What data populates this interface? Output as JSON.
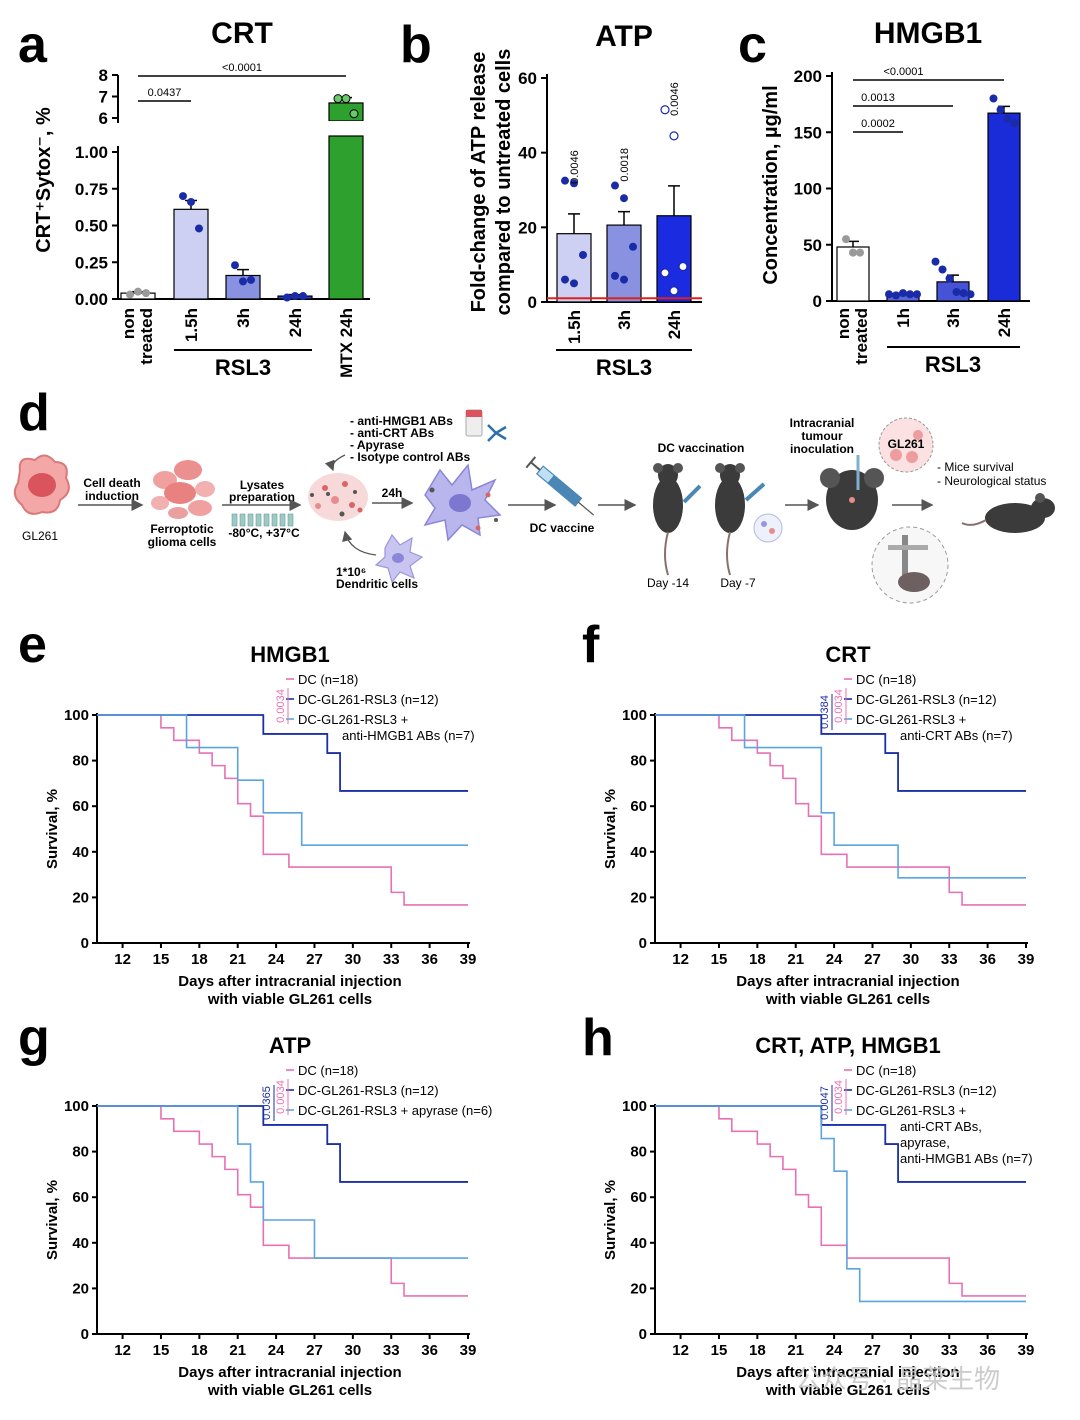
{
  "panels": {
    "a": "a",
    "b": "b",
    "c": "c",
    "d": "d",
    "e": "e",
    "f": "f",
    "g": "g",
    "h": "h"
  },
  "chart_data": [
    {
      "id": "a",
      "type": "bar",
      "title": "CRT",
      "ylabel": "CRT⁺Sytox⁻, %",
      "categories": [
        "non treated",
        "1.5h",
        "3h",
        "24h",
        "MTX 24h"
      ],
      "group_label": "RSL3",
      "values": [
        0.04,
        0.61,
        0.16,
        0.02,
        6.7
      ],
      "errors": [
        0.01,
        0.06,
        0.04,
        0.01,
        0.25
      ],
      "points": [
        [
          0.03,
          0.05,
          0.04
        ],
        [
          0.7,
          0.66,
          0.48
        ],
        [
          0.23,
          0.12,
          0.13
        ],
        [
          0.01,
          0.02,
          0.02
        ],
        [
          6.9,
          6.9,
          6.2
        ]
      ],
      "lower_ticks": [
        "0.00",
        "0.25",
        "0.50",
        "0.75",
        "1.00"
      ],
      "upper_ticks": [
        "6",
        "7",
        "8"
      ],
      "colors": [
        "#ffffff",
        "#cdd0f3",
        "#8892e0",
        "#2d3fd3",
        "#2ea02e"
      ],
      "pvalues": [
        {
          "text": "0.0437",
          "from": 0,
          "to": 1
        },
        {
          "text": "<0.0001",
          "from": 0,
          "to": 4
        }
      ]
    },
    {
      "id": "b",
      "type": "bar",
      "title": "ATP",
      "ylabel": "Fold-change of ATP release compared to untreated cells",
      "ylabel_lines": [
        "Fold-change of ATP release",
        "compared to untreated cells"
      ],
      "categories": [
        "1.5h",
        "3h",
        "24h"
      ],
      "group_label": "RSL3",
      "values": [
        18.3,
        20.6,
        23.1
      ],
      "errors": [
        5.3,
        3.6,
        8.0
      ],
      "points": [
        [
          32.5,
          31.8,
          12.6,
          6.0,
          5.0
        ],
        [
          31.2,
          27.8,
          14.8,
          7.0,
          6.0
        ],
        [
          51.5,
          44.5,
          9.5,
          7.8,
          3.0
        ]
      ],
      "ylim": [
        0,
        60
      ],
      "yticks": [
        "0",
        "20",
        "40",
        "60"
      ],
      "baseline": 1,
      "colors": [
        "#cdd0f3",
        "#8892e0",
        "#1a2be0"
      ],
      "pvalues": [
        "0.0046",
        "0.0018",
        "0.0046"
      ]
    },
    {
      "id": "c",
      "type": "bar",
      "title": "HMGB1",
      "ylabel": "Concentration, µg/ml",
      "categories": [
        "non treated",
        "1h",
        "3h",
        "24h"
      ],
      "group_label": "RSL3",
      "values": [
        48,
        6,
        17,
        167
      ],
      "errors": [
        5,
        1,
        6,
        6
      ],
      "points": [
        [
          55,
          43,
          43
        ],
        [
          6,
          5,
          7,
          6,
          6
        ],
        [
          35,
          28,
          20,
          8,
          7,
          6
        ],
        [
          180,
          170,
          162,
          158
        ]
      ],
      "ylim": [
        0,
        200
      ],
      "yticks": [
        "0",
        "50",
        "100",
        "150",
        "200"
      ],
      "colors": [
        "#ffffff",
        "#5a66d9",
        "#4753d6",
        "#1a2bd8"
      ],
      "pvalues": [
        {
          "text": "0.0002",
          "from": 0,
          "to": 1
        },
        {
          "text": "0.0013",
          "from": 0,
          "to": 2
        },
        {
          "text": "<0.0001",
          "from": 0,
          "to": 3
        }
      ]
    },
    {
      "id": "e",
      "type": "line",
      "subtype": "kaplan-meier",
      "title": "HMGB1",
      "xlabel_lines": [
        "Days after intracranial injection",
        "with viable GL261 cells"
      ],
      "ylabel": "Survival, %",
      "xticks": [
        "12",
        "15",
        "18",
        "21",
        "24",
        "27",
        "30",
        "33",
        "36",
        "39"
      ],
      "yticks": [
        "0",
        "20",
        "40",
        "60",
        "80",
        "100"
      ],
      "xlim": [
        10,
        39
      ],
      "ylim": [
        0,
        100
      ],
      "legend": [
        "DC (n=18)",
        "DC-GL261-RSL3 (n=12)",
        "DC-GL261-RSL3 +",
        "anti-HMGB1 ABs (n=7)"
      ],
      "pvalues": [
        {
          "text": "0.0034",
          "color": "#e870b4"
        }
      ],
      "series": [
        {
          "name": "DC (n=18)",
          "color": "#e870b4",
          "steps": [
            [
              10,
              100
            ],
            [
              15,
              94.4
            ],
            [
              16,
              88.9
            ],
            [
              18,
              83.3
            ],
            [
              19,
              77.8
            ],
            [
              20,
              72.2
            ],
            [
              21,
              61.1
            ],
            [
              22,
              55.6
            ],
            [
              23,
              38.9
            ],
            [
              25,
              33.3
            ],
            [
              33,
              22.2
            ],
            [
              34,
              16.7
            ],
            [
              39,
              16.7
            ]
          ]
        },
        {
          "name": "DC-GL261-RSL3 (n=12)",
          "color": "#1a2fa8",
          "steps": [
            [
              10,
              100
            ],
            [
              23,
              91.7
            ],
            [
              28,
              83.3
            ],
            [
              29,
              66.7
            ],
            [
              39,
              66.7
            ]
          ]
        },
        {
          "name": "DC-GL261-RSL3 + anti-HMGB1 ABs (n=7)",
          "color": "#5aa5de",
          "steps": [
            [
              10,
              100
            ],
            [
              17,
              85.7
            ],
            [
              21,
              71.4
            ],
            [
              23,
              57.1
            ],
            [
              26,
              42.9
            ],
            [
              39,
              42.9
            ]
          ]
        }
      ]
    },
    {
      "id": "f",
      "type": "line",
      "subtype": "kaplan-meier",
      "title": "CRT",
      "xlabel_lines": [
        "Days after intracranial injection",
        "with viable GL261 cells"
      ],
      "ylabel": "Survival, %",
      "xticks": [
        "12",
        "15",
        "18",
        "21",
        "24",
        "27",
        "30",
        "33",
        "36",
        "39"
      ],
      "yticks": [
        "0",
        "20",
        "40",
        "60",
        "80",
        "100"
      ],
      "xlim": [
        10,
        39
      ],
      "ylim": [
        0,
        100
      ],
      "legend": [
        "DC (n=18)",
        "DC-GL261-RSL3 (n=12)",
        "DC-GL261-RSL3 +",
        "anti-CRT ABs (n=7)"
      ],
      "pvalues": [
        {
          "text": "0.0384",
          "color": "#1a2fa8"
        },
        {
          "text": "0.0034",
          "color": "#e870b4"
        }
      ],
      "series": [
        {
          "name": "DC (n=18)",
          "color": "#e870b4",
          "steps": [
            [
              10,
              100
            ],
            [
              15,
              94.4
            ],
            [
              16,
              88.9
            ],
            [
              18,
              83.3
            ],
            [
              19,
              77.8
            ],
            [
              20,
              72.2
            ],
            [
              21,
              61.1
            ],
            [
              22,
              55.6
            ],
            [
              23,
              38.9
            ],
            [
              25,
              33.3
            ],
            [
              33,
              22.2
            ],
            [
              34,
              16.7
            ],
            [
              39,
              16.7
            ]
          ]
        },
        {
          "name": "DC-GL261-RSL3 (n=12)",
          "color": "#1a2fa8",
          "steps": [
            [
              10,
              100
            ],
            [
              23,
              91.7
            ],
            [
              28,
              83.3
            ],
            [
              29,
              66.7
            ],
            [
              39,
              66.7
            ]
          ]
        },
        {
          "name": "DC-GL261-RSL3 + anti-CRT ABs (n=7)",
          "color": "#5aa5de",
          "steps": [
            [
              10,
              100
            ],
            [
              17,
              85.7
            ],
            [
              23,
              57.1
            ],
            [
              24,
              42.9
            ],
            [
              29,
              28.6
            ],
            [
              39,
              28.6
            ]
          ]
        }
      ]
    },
    {
      "id": "g",
      "type": "line",
      "subtype": "kaplan-meier",
      "title": "ATP",
      "xlabel_lines": [
        "Days after intracranial injection",
        "with viable GL261 cells"
      ],
      "ylabel": "Survival, %",
      "xticks": [
        "12",
        "15",
        "18",
        "21",
        "24",
        "27",
        "30",
        "33",
        "36",
        "39"
      ],
      "yticks": [
        "0",
        "20",
        "40",
        "60",
        "80",
        "100"
      ],
      "xlim": [
        10,
        39
      ],
      "ylim": [
        0,
        100
      ],
      "legend": [
        "DC (n=18)",
        "DC-GL261-RSL3 (n=12)",
        "DC-GL261-RSL3 + apyrase (n=6)"
      ],
      "pvalues": [
        {
          "text": "0.0365",
          "color": "#1a2fa8"
        },
        {
          "text": "0.0034",
          "color": "#e870b4"
        }
      ],
      "series": [
        {
          "name": "DC (n=18)",
          "color": "#e870b4",
          "steps": [
            [
              10,
              100
            ],
            [
              15,
              94.4
            ],
            [
              16,
              88.9
            ],
            [
              18,
              83.3
            ],
            [
              19,
              77.8
            ],
            [
              20,
              72.2
            ],
            [
              21,
              61.1
            ],
            [
              22,
              55.6
            ],
            [
              23,
              38.9
            ],
            [
              25,
              33.3
            ],
            [
              33,
              22.2
            ],
            [
              34,
              16.7
            ],
            [
              39,
              16.7
            ]
          ]
        },
        {
          "name": "DC-GL261-RSL3 (n=12)",
          "color": "#1a2fa8",
          "steps": [
            [
              10,
              100
            ],
            [
              23,
              91.7
            ],
            [
              28,
              83.3
            ],
            [
              29,
              66.7
            ],
            [
              39,
              66.7
            ]
          ]
        },
        {
          "name": "DC-GL261-RSL3 + apyrase (n=6)",
          "color": "#5aa5de",
          "steps": [
            [
              10,
              100
            ],
            [
              21,
              83.3
            ],
            [
              22,
              66.7
            ],
            [
              23,
              50
            ],
            [
              27,
              33.3
            ],
            [
              39,
              33.3
            ]
          ]
        }
      ]
    },
    {
      "id": "h",
      "type": "line",
      "subtype": "kaplan-meier",
      "title": "CRT, ATP, HMGB1",
      "xlabel_lines": [
        "Days after intracranial injection",
        "with viable GL261 cells"
      ],
      "ylabel": "Survival, %",
      "xticks": [
        "12",
        "15",
        "18",
        "21",
        "24",
        "27",
        "30",
        "33",
        "36",
        "39"
      ],
      "yticks": [
        "0",
        "20",
        "40",
        "60",
        "80",
        "100"
      ],
      "xlim": [
        10,
        39
      ],
      "ylim": [
        0,
        100
      ],
      "legend": [
        "DC (n=18)",
        "DC-GL261-RSL3 (n=12)",
        "DC-GL261-RSL3 +",
        "anti-CRT ABs,",
        "apyrase,",
        "anti-HMGB1 ABs (n=7)"
      ],
      "pvalues": [
        {
          "text": "0.0047",
          "color": "#1a2fa8"
        },
        {
          "text": "0.0034",
          "color": "#e870b4"
        }
      ],
      "series": [
        {
          "name": "DC (n=18)",
          "color": "#e870b4",
          "steps": [
            [
              10,
              100
            ],
            [
              15,
              94.4
            ],
            [
              16,
              88.9
            ],
            [
              18,
              83.3
            ],
            [
              19,
              77.8
            ],
            [
              20,
              72.2
            ],
            [
              21,
              61.1
            ],
            [
              22,
              55.6
            ],
            [
              23,
              38.9
            ],
            [
              25,
              33.3
            ],
            [
              33,
              22.2
            ],
            [
              34,
              16.7
            ],
            [
              39,
              16.7
            ]
          ]
        },
        {
          "name": "DC-GL261-RSL3 (n=12)",
          "color": "#1a2fa8",
          "steps": [
            [
              10,
              100
            ],
            [
              23,
              91.7
            ],
            [
              28,
              83.3
            ],
            [
              29,
              66.7
            ],
            [
              39,
              66.7
            ]
          ]
        },
        {
          "name": "DC-GL261-RSL3 + anti-CRT ABs, apyrase, anti-HMGB1 ABs (n=7)",
          "color": "#5aa5de",
          "steps": [
            [
              10,
              100
            ],
            [
              23,
              85.7
            ],
            [
              24,
              71.4
            ],
            [
              25,
              28.6
            ],
            [
              26,
              14.3
            ],
            [
              39,
              14.3
            ]
          ]
        }
      ]
    }
  ],
  "schematic": {
    "gl261": "GL261",
    "cell_death": [
      "Cell death",
      "induction"
    ],
    "ferroptotic": [
      "Ferroptotic",
      "glioma cells"
    ],
    "lysates": [
      "Lysates",
      "preparation"
    ],
    "temps": "-80°C, +37°C",
    "antibodies": [
      "- anti-HMGB1 ABs",
      "- anti-CRT ABs",
      "- Apyrase",
      "- Isotype control ABs"
    ],
    "time_24h": "24h",
    "dendritic": [
      "1*10⁶",
      "Dendritic cells"
    ],
    "dc_vaccine": "DC vaccine",
    "dc_vaccination": "DC vaccination",
    "day14": "Day -14",
    "day7": "Day -7",
    "intracranial": [
      "Intracranial",
      "tumour",
      "inoculation"
    ],
    "gl261_bubble": "GL261",
    "outcomes": [
      "- Mice survival",
      "- Neurological status"
    ]
  },
  "watermark": "公众号 · 晶莱生物"
}
